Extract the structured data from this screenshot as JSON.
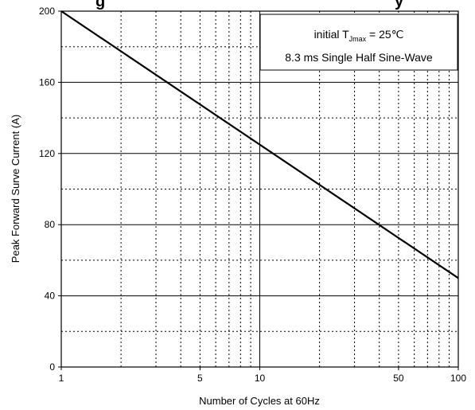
{
  "chart_data": {
    "type": "line",
    "title": "...g... ...y...",
    "xlabel": "Number of Cycles at 60Hz",
    "ylabel": "Peak Forward Surve Current (A)",
    "x_scale": "log",
    "xlim": [
      1,
      100
    ],
    "ylim": [
      0,
      200
    ],
    "x_ticks": [
      1,
      5,
      10,
      50,
      100
    ],
    "y_ticks": [
      0,
      40,
      80,
      120,
      160,
      200
    ],
    "grid": true,
    "series": [
      {
        "x": [
          1,
          100
        ],
        "y": [
          200,
          50
        ]
      }
    ],
    "annotation": {
      "line1_prefix": "initial T",
      "line1_sub": "Jmax",
      "line1_suffix": " = 25℃",
      "line2": "8.3 ms Single Half Sine-Wave"
    }
  }
}
